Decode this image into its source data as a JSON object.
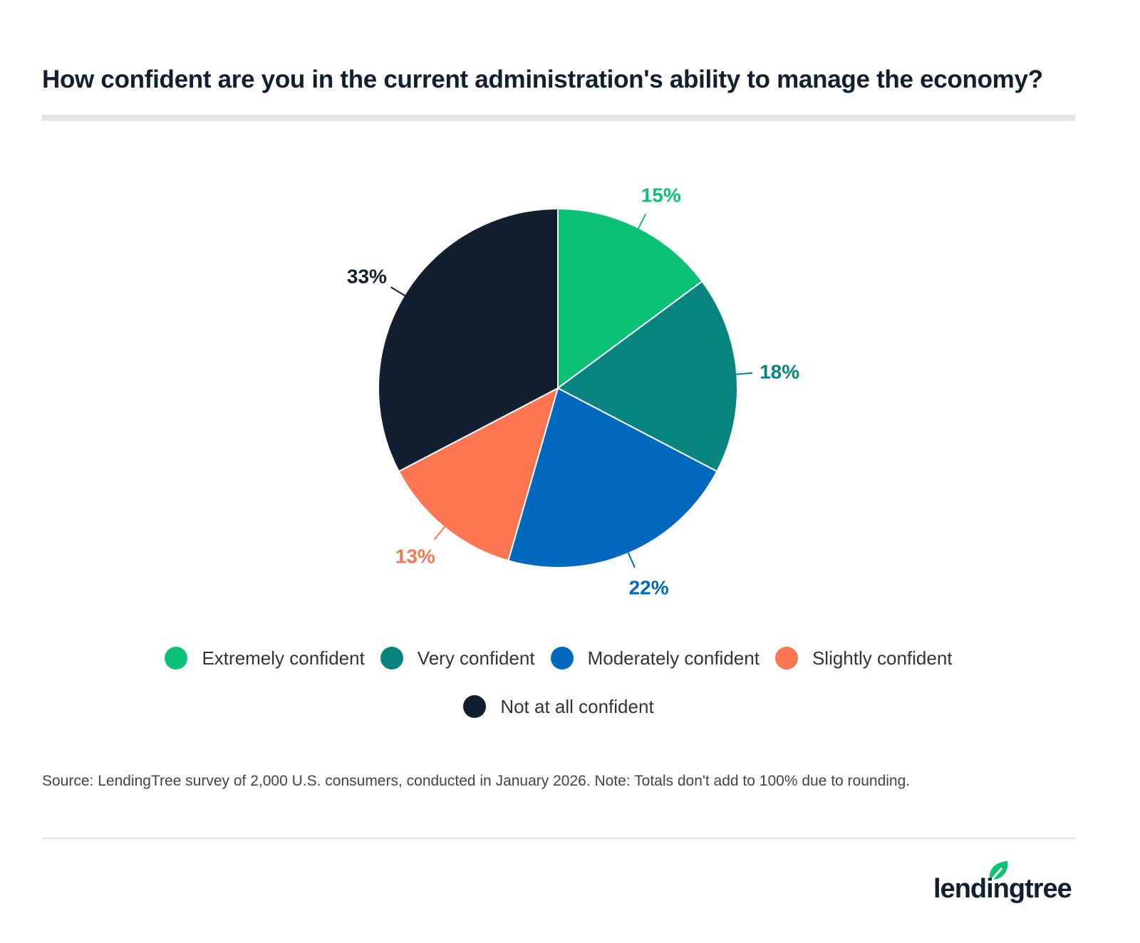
{
  "chart_data": {
    "type": "pie",
    "title": "How confident are you in the current administration's ability to manage the economy?",
    "categories": [
      "Extremely confident",
      "Very confident",
      "Moderately confident",
      "Slightly confident",
      "Not at all confident"
    ],
    "values": [
      15,
      18,
      22,
      13,
      33
    ],
    "labels": [
      "15%",
      "18%",
      "22%",
      "13%",
      "33%"
    ],
    "colors": [
      "#0cc175",
      "#078480",
      "#0068bd",
      "#ff7552",
      "#121f30"
    ],
    "start": "top, clockwise",
    "legend": "bottom"
  },
  "source": "Source: LendingTree survey of 2,000 U.S. consumers, conducted in January 2026. Note: Totals don't add to 100% due to rounding.",
  "logo": {
    "text": "lendingtree"
  }
}
